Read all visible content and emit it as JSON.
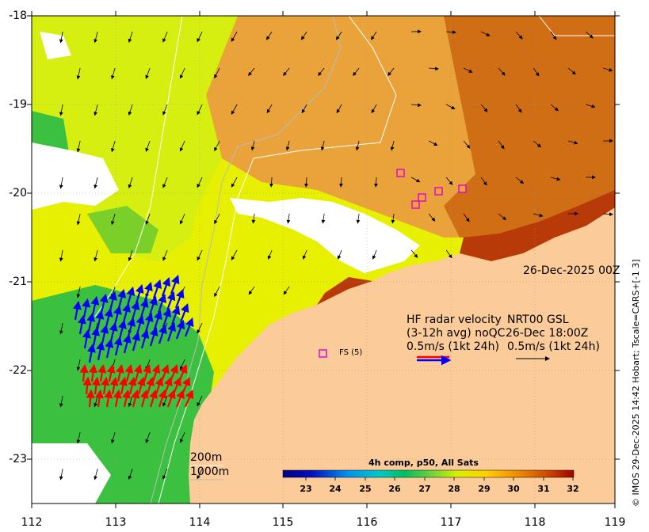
{
  "map": {
    "lat_ticks": [
      "-18",
      "-19",
      "-20",
      "-21",
      "-22",
      "-23"
    ],
    "lon_ticks": [
      "112",
      "113",
      "114",
      "115",
      "116",
      "117",
      "118",
      "119"
    ]
  },
  "date_label": "26-Dec-2025 00Z",
  "legend": {
    "hf_title": "HF radar velocity",
    "hf_avg": "(3-12h avg) noQC",
    "hf_scale": "0.5m/s (1kt 24h)",
    "nrt_title": "NRT00 GSL",
    "nrt_date": "26-Dec 18:00Z",
    "nrt_scale": "0.5m/s (1kt 24h)"
  },
  "station": {
    "label": "FS (5)"
  },
  "isobaths": {
    "shallow": "200m",
    "deep": "1000m"
  },
  "colorbar": {
    "title": "4h comp, p50, All Sats",
    "ticks": [
      "23",
      "24",
      "25",
      "26",
      "27",
      "28",
      "29",
      "30",
      "31",
      "32"
    ]
  },
  "credit": "© IMOS 29-Dec-2025 14:42 Hobart; Tscale=CARS+[-1 3]",
  "colors": {
    "land": "#FBCB9A",
    "hf_blue": "#0000FF",
    "hf_red": "#FF0000",
    "station": "#DD00DD"
  }
}
